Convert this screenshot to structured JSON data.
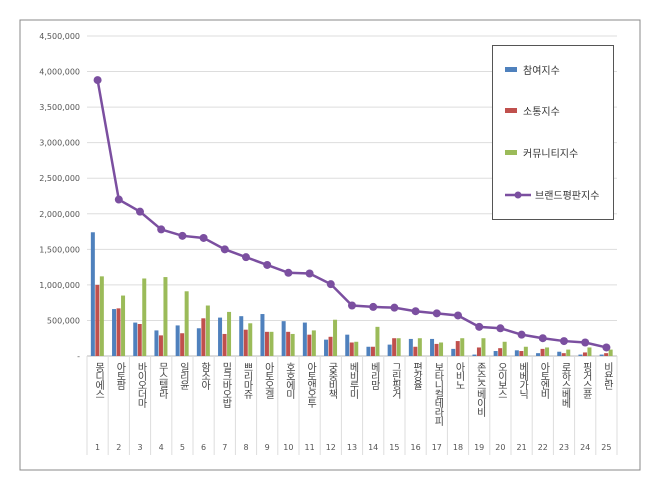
{
  "chart_data": {
    "type": "bar+line",
    "categories": [
      "몽디에스",
      "아토팜",
      "바이오더마",
      "무스텔라",
      "일리윤",
      "함소아",
      "밀크바오밥",
      "쁘리마쥬",
      "아토오겔",
      "호호에미",
      "아토앤오투",
      "궁중비책",
      "베비루미",
      "베리맘",
      "그린핑거",
      "편강율",
      "보타니컬테라피",
      "아비노",
      "존슨즈베이비",
      "오이보스",
      "베베가닉",
      "아토엔비",
      "로하스베베",
      "핑거스퓬",
      "비욘란"
    ],
    "ranks": [
      "1",
      "2",
      "3",
      "4",
      "5",
      "6",
      "7",
      "8",
      "9",
      "10",
      "11",
      "12",
      "13",
      "14",
      "15",
      "16",
      "17",
      "18",
      "19",
      "20",
      "21",
      "22",
      "23",
      "24",
      "25"
    ],
    "ylim": [
      0,
      4500000
    ],
    "yticks": [
      "-",
      "500,000",
      "1,000,000",
      "1,500,000",
      "2,000,000",
      "2,500,000",
      "3,000,000",
      "3,500,000",
      "4,000,000",
      "4,500,000"
    ],
    "grid": true,
    "legend_position": "right",
    "series": [
      {
        "name": "참여지수",
        "type": "bar",
        "color": "#4f81bd",
        "values": [
          1740000,
          660000,
          470000,
          360000,
          430000,
          390000,
          540000,
          560000,
          590000,
          490000,
          470000,
          230000,
          300000,
          130000,
          160000,
          240000,
          240000,
          100000,
          20000,
          70000,
          80000,
          40000,
          60000,
          20000,
          20000
        ]
      },
      {
        "name": "소통지수",
        "type": "bar",
        "color": "#c0504d",
        "values": [
          1000000,
          670000,
          450000,
          290000,
          320000,
          530000,
          310000,
          370000,
          340000,
          340000,
          300000,
          270000,
          190000,
          130000,
          250000,
          130000,
          170000,
          210000,
          120000,
          110000,
          70000,
          100000,
          40000,
          50000,
          40000
        ]
      },
      {
        "name": "커뮤니티지수",
        "type": "bar",
        "color": "#9bbb59",
        "values": [
          1120000,
          850000,
          1090000,
          1110000,
          910000,
          710000,
          620000,
          460000,
          340000,
          310000,
          360000,
          510000,
          200000,
          410000,
          250000,
          250000,
          190000,
          250000,
          250000,
          200000,
          130000,
          120000,
          90000,
          120000,
          90000
        ]
      },
      {
        "name": "브랜드평판지수",
        "type": "line",
        "color": "#7b4fa0",
        "values": [
          3880000,
          2200000,
          2030000,
          1780000,
          1690000,
          1660000,
          1500000,
          1390000,
          1280000,
          1170000,
          1160000,
          1010000,
          710000,
          690000,
          680000,
          630000,
          600000,
          570000,
          410000,
          390000,
          300000,
          250000,
          210000,
          190000,
          120000
        ]
      }
    ]
  }
}
